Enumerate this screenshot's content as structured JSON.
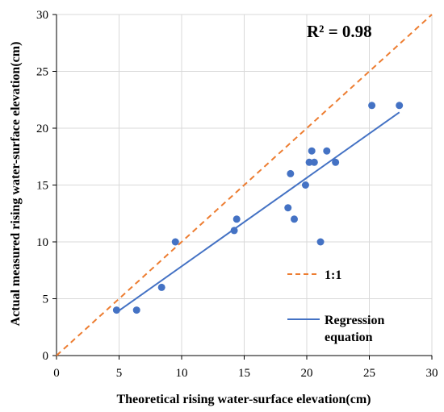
{
  "chart_data": {
    "type": "scatter",
    "title": "",
    "xlabel": "Theoretical rising water-surface elevation(cm)",
    "ylabel": "Actual measured rising water-surface elevation(cm)",
    "xlim": [
      0,
      30
    ],
    "ylim": [
      0,
      30
    ],
    "xticks": [
      0,
      5,
      10,
      15,
      20,
      25,
      30
    ],
    "yticks": [
      0,
      5,
      10,
      15,
      20,
      25,
      30
    ],
    "grid": true,
    "legend_position": "right-center",
    "annotation": "R² = 0.98",
    "series": [
      {
        "name": "",
        "kind": "points",
        "color": "#4472C4",
        "x": [
          4.8,
          6.4,
          8.4,
          9.5,
          14.2,
          14.4,
          18.5,
          18.7,
          19.0,
          19.9,
          20.2,
          20.4,
          20.6,
          21.1,
          21.6,
          22.3,
          25.2,
          27.4
        ],
        "y": [
          4,
          4,
          6,
          10,
          11,
          12,
          13,
          16,
          12,
          15,
          17,
          18,
          17,
          10,
          18,
          17,
          22,
          22
        ]
      },
      {
        "name": "1:1",
        "kind": "dashed-line",
        "color": "#ED7D31",
        "x": [
          0,
          30
        ],
        "y": [
          0,
          30
        ]
      },
      {
        "name": "Regression equation",
        "kind": "line",
        "color": "#4472C4",
        "x": [
          4.8,
          27.4
        ],
        "y": [
          3.8,
          21.4
        ]
      }
    ]
  }
}
